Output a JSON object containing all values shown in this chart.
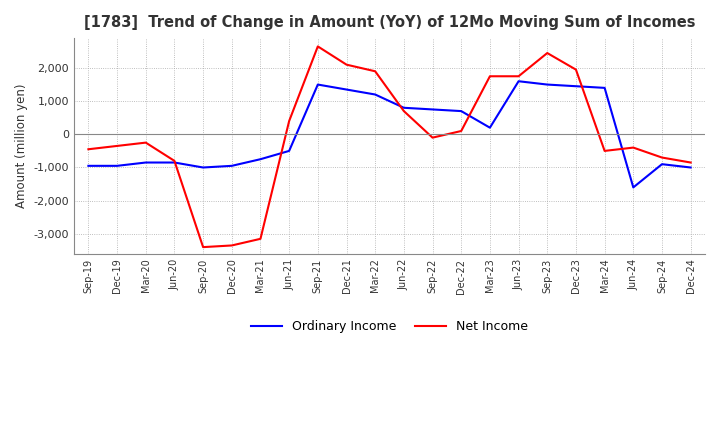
{
  "title": "[1783]  Trend of Change in Amount (YoY) of 12Mo Moving Sum of Incomes",
  "ylabel": "Amount (million yen)",
  "ylim": [
    -3600,
    2900
  ],
  "yticks": [
    -3000,
    -2000,
    -1000,
    0,
    1000,
    2000
  ],
  "x_labels": [
    "Sep-19",
    "Dec-19",
    "Mar-20",
    "Jun-20",
    "Sep-20",
    "Dec-20",
    "Mar-21",
    "Jun-21",
    "Sep-21",
    "Dec-21",
    "Mar-22",
    "Jun-22",
    "Sep-22",
    "Dec-22",
    "Mar-23",
    "Jun-23",
    "Sep-23",
    "Dec-23",
    "Mar-24",
    "Jun-24",
    "Sep-24",
    "Dec-24"
  ],
  "ordinary_income": [
    -950,
    -950,
    -850,
    -850,
    -1000,
    -950,
    -750,
    -500,
    1500,
    1350,
    1200,
    800,
    750,
    700,
    200,
    1600,
    1500,
    1450,
    1400,
    -1600,
    -900,
    -1000
  ],
  "net_income": [
    -450,
    -350,
    -250,
    -800,
    -3400,
    -3350,
    -3150,
    400,
    2650,
    2100,
    1900,
    700,
    -100,
    100,
    1750,
    1750,
    2450,
    1950,
    -500,
    -400,
    -700,
    -850
  ],
  "ordinary_color": "#0000ff",
  "net_color": "#ff0000",
  "grid_color": "#aaaaaa",
  "background_color": "#ffffff",
  "legend_ordinary": "Ordinary Income",
  "legend_net": "Net Income"
}
